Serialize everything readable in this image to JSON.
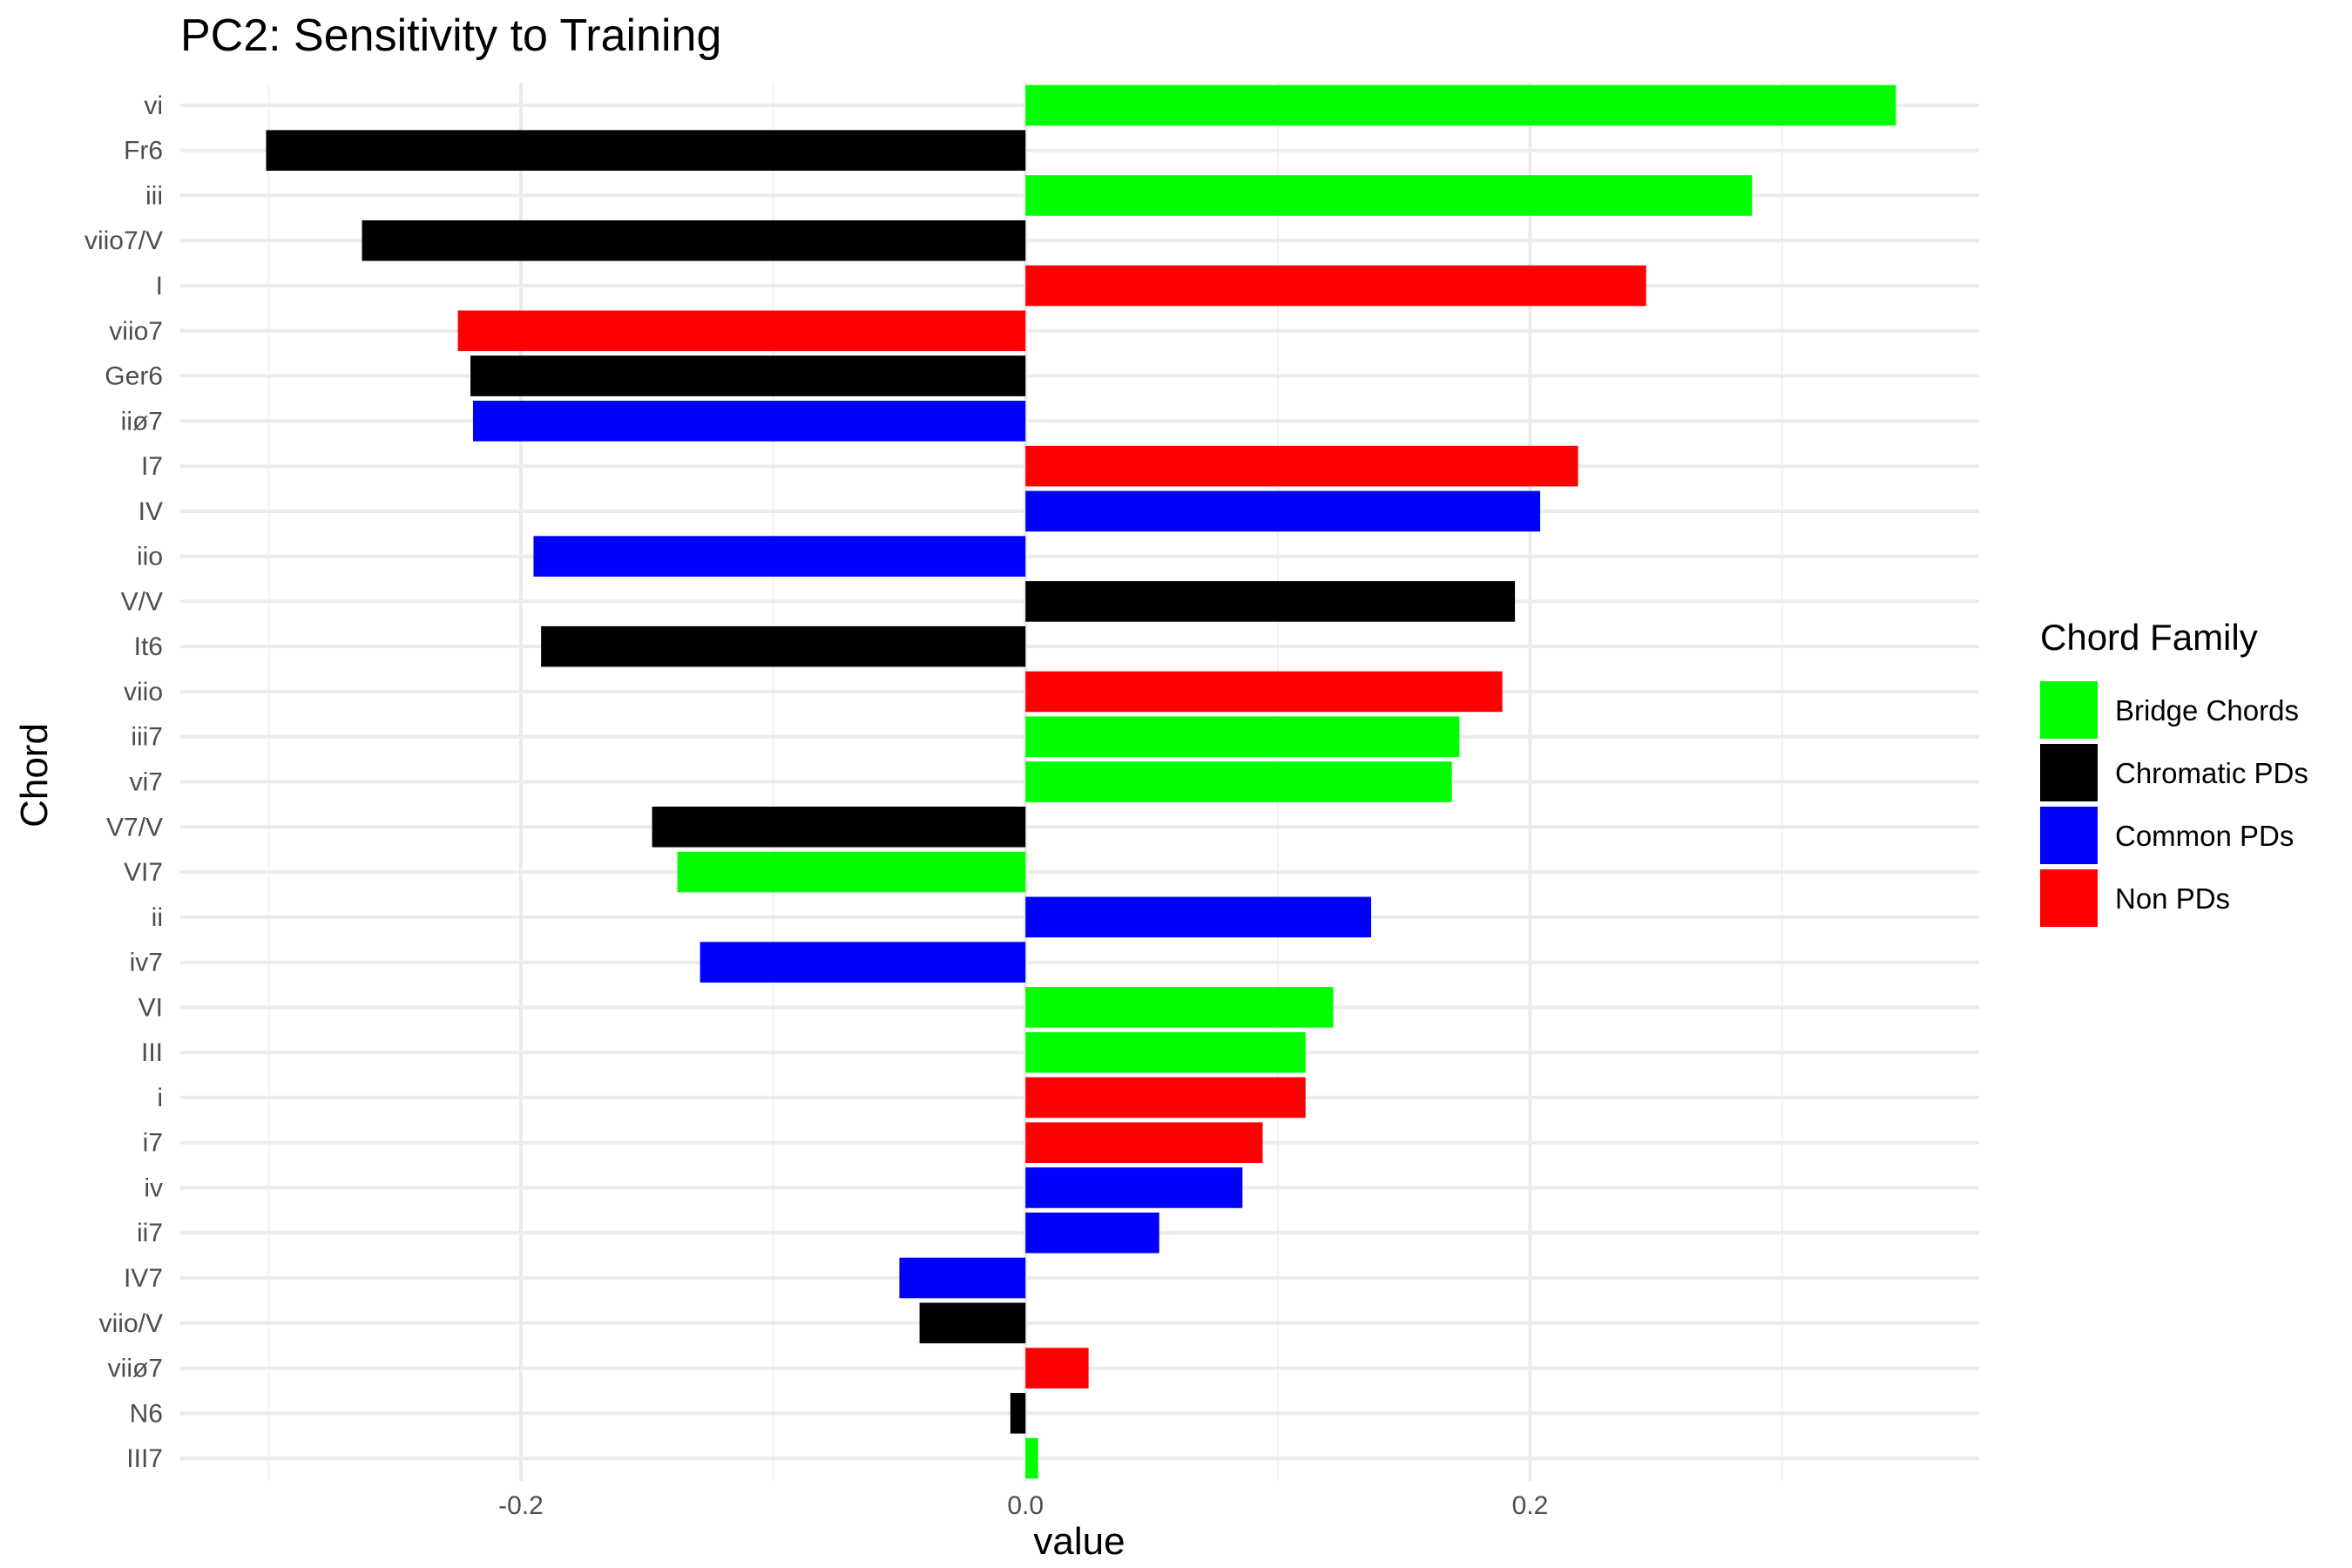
{
  "chart_data": {
    "type": "bar",
    "orientation": "horizontal",
    "title": "PC2: Sensitivity to Training",
    "xlabel": "value",
    "ylabel": "Chord",
    "xlim": [
      -0.335,
      0.378
    ],
    "xticks": [
      -0.2,
      0.0,
      0.2
    ],
    "xtick_labels": [
      "-0.2",
      "0.0",
      "0.2"
    ],
    "grid": true,
    "legend": {
      "title": "Chord Family",
      "placement": "right",
      "entries": [
        {
          "name": "Bridge Chords",
          "color": "#00ff00"
        },
        {
          "name": "Chromatic PDs",
          "color": "#000000"
        },
        {
          "name": "Common PDs",
          "color": "#0000ff"
        },
        {
          "name": "Non PDs",
          "color": "#ff0000"
        }
      ]
    },
    "categories": [
      "vi",
      "Fr6",
      "iii",
      "viio7/V",
      "I",
      "viio7",
      "Ger6",
      "iiø7",
      "I7",
      "IV",
      "iio",
      "V/V",
      "It6",
      "viio",
      "iii7",
      "vi7",
      "V7/V",
      "VI7",
      "ii",
      "iv7",
      "VI",
      "III",
      "i",
      "i7",
      "iv",
      "ii7",
      "IV7",
      "viio/V",
      "viiø7",
      "N6",
      "III7"
    ],
    "values": [
      0.345,
      -0.301,
      0.288,
      -0.263,
      0.246,
      -0.225,
      -0.22,
      -0.219,
      0.219,
      0.204,
      -0.195,
      0.194,
      -0.192,
      0.189,
      0.172,
      0.169,
      -0.148,
      -0.138,
      0.137,
      -0.129,
      0.122,
      0.111,
      0.111,
      0.094,
      0.086,
      0.053,
      -0.05,
      -0.042,
      0.025,
      -0.006,
      0.005
    ],
    "families": [
      "Bridge Chords",
      "Chromatic PDs",
      "Bridge Chords",
      "Chromatic PDs",
      "Non PDs",
      "Non PDs",
      "Chromatic PDs",
      "Common PDs",
      "Non PDs",
      "Common PDs",
      "Common PDs",
      "Chromatic PDs",
      "Chromatic PDs",
      "Non PDs",
      "Bridge Chords",
      "Bridge Chords",
      "Chromatic PDs",
      "Bridge Chords",
      "Common PDs",
      "Common PDs",
      "Bridge Chords",
      "Bridge Chords",
      "Non PDs",
      "Non PDs",
      "Common PDs",
      "Common PDs",
      "Common PDs",
      "Chromatic PDs",
      "Non PDs",
      "Chromatic PDs",
      "Bridge Chords"
    ]
  }
}
